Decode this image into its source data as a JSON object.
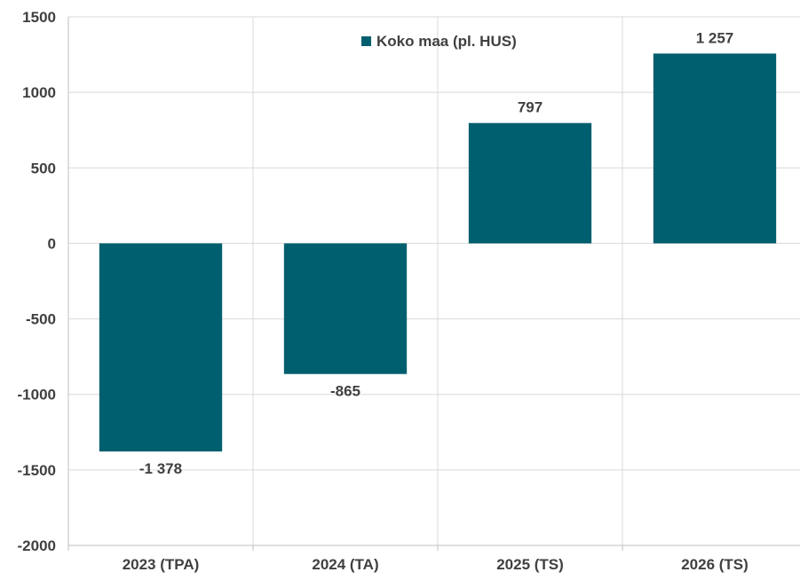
{
  "chart_data": {
    "type": "bar",
    "categories": [
      "2023 (TPA)",
      "2024 (TA)",
      "2025 (TS)",
      "2026 (TS)"
    ],
    "series": [
      {
        "name": "Koko maa (pl. HUS)",
        "values": [
          -1378,
          -865,
          797,
          1257
        ],
        "value_labels": [
          "-1 378",
          "-865",
          "797",
          "1 257"
        ],
        "color": "#005f6e"
      }
    ],
    "ylim": [
      -2000,
      1500
    ],
    "yticks": [
      -2000,
      -1500,
      -1000,
      -500,
      0,
      500,
      1000,
      1500
    ],
    "ytick_labels": [
      "-2000",
      "-1500",
      "-1000",
      "-500",
      "0",
      "500",
      "1000",
      "1500"
    ],
    "grid": true,
    "legend_position": "top",
    "colors": {
      "bar": "#005f6e",
      "grid": "#d9d9d9",
      "axis": "#bfbfbf",
      "text": "#404040"
    }
  }
}
